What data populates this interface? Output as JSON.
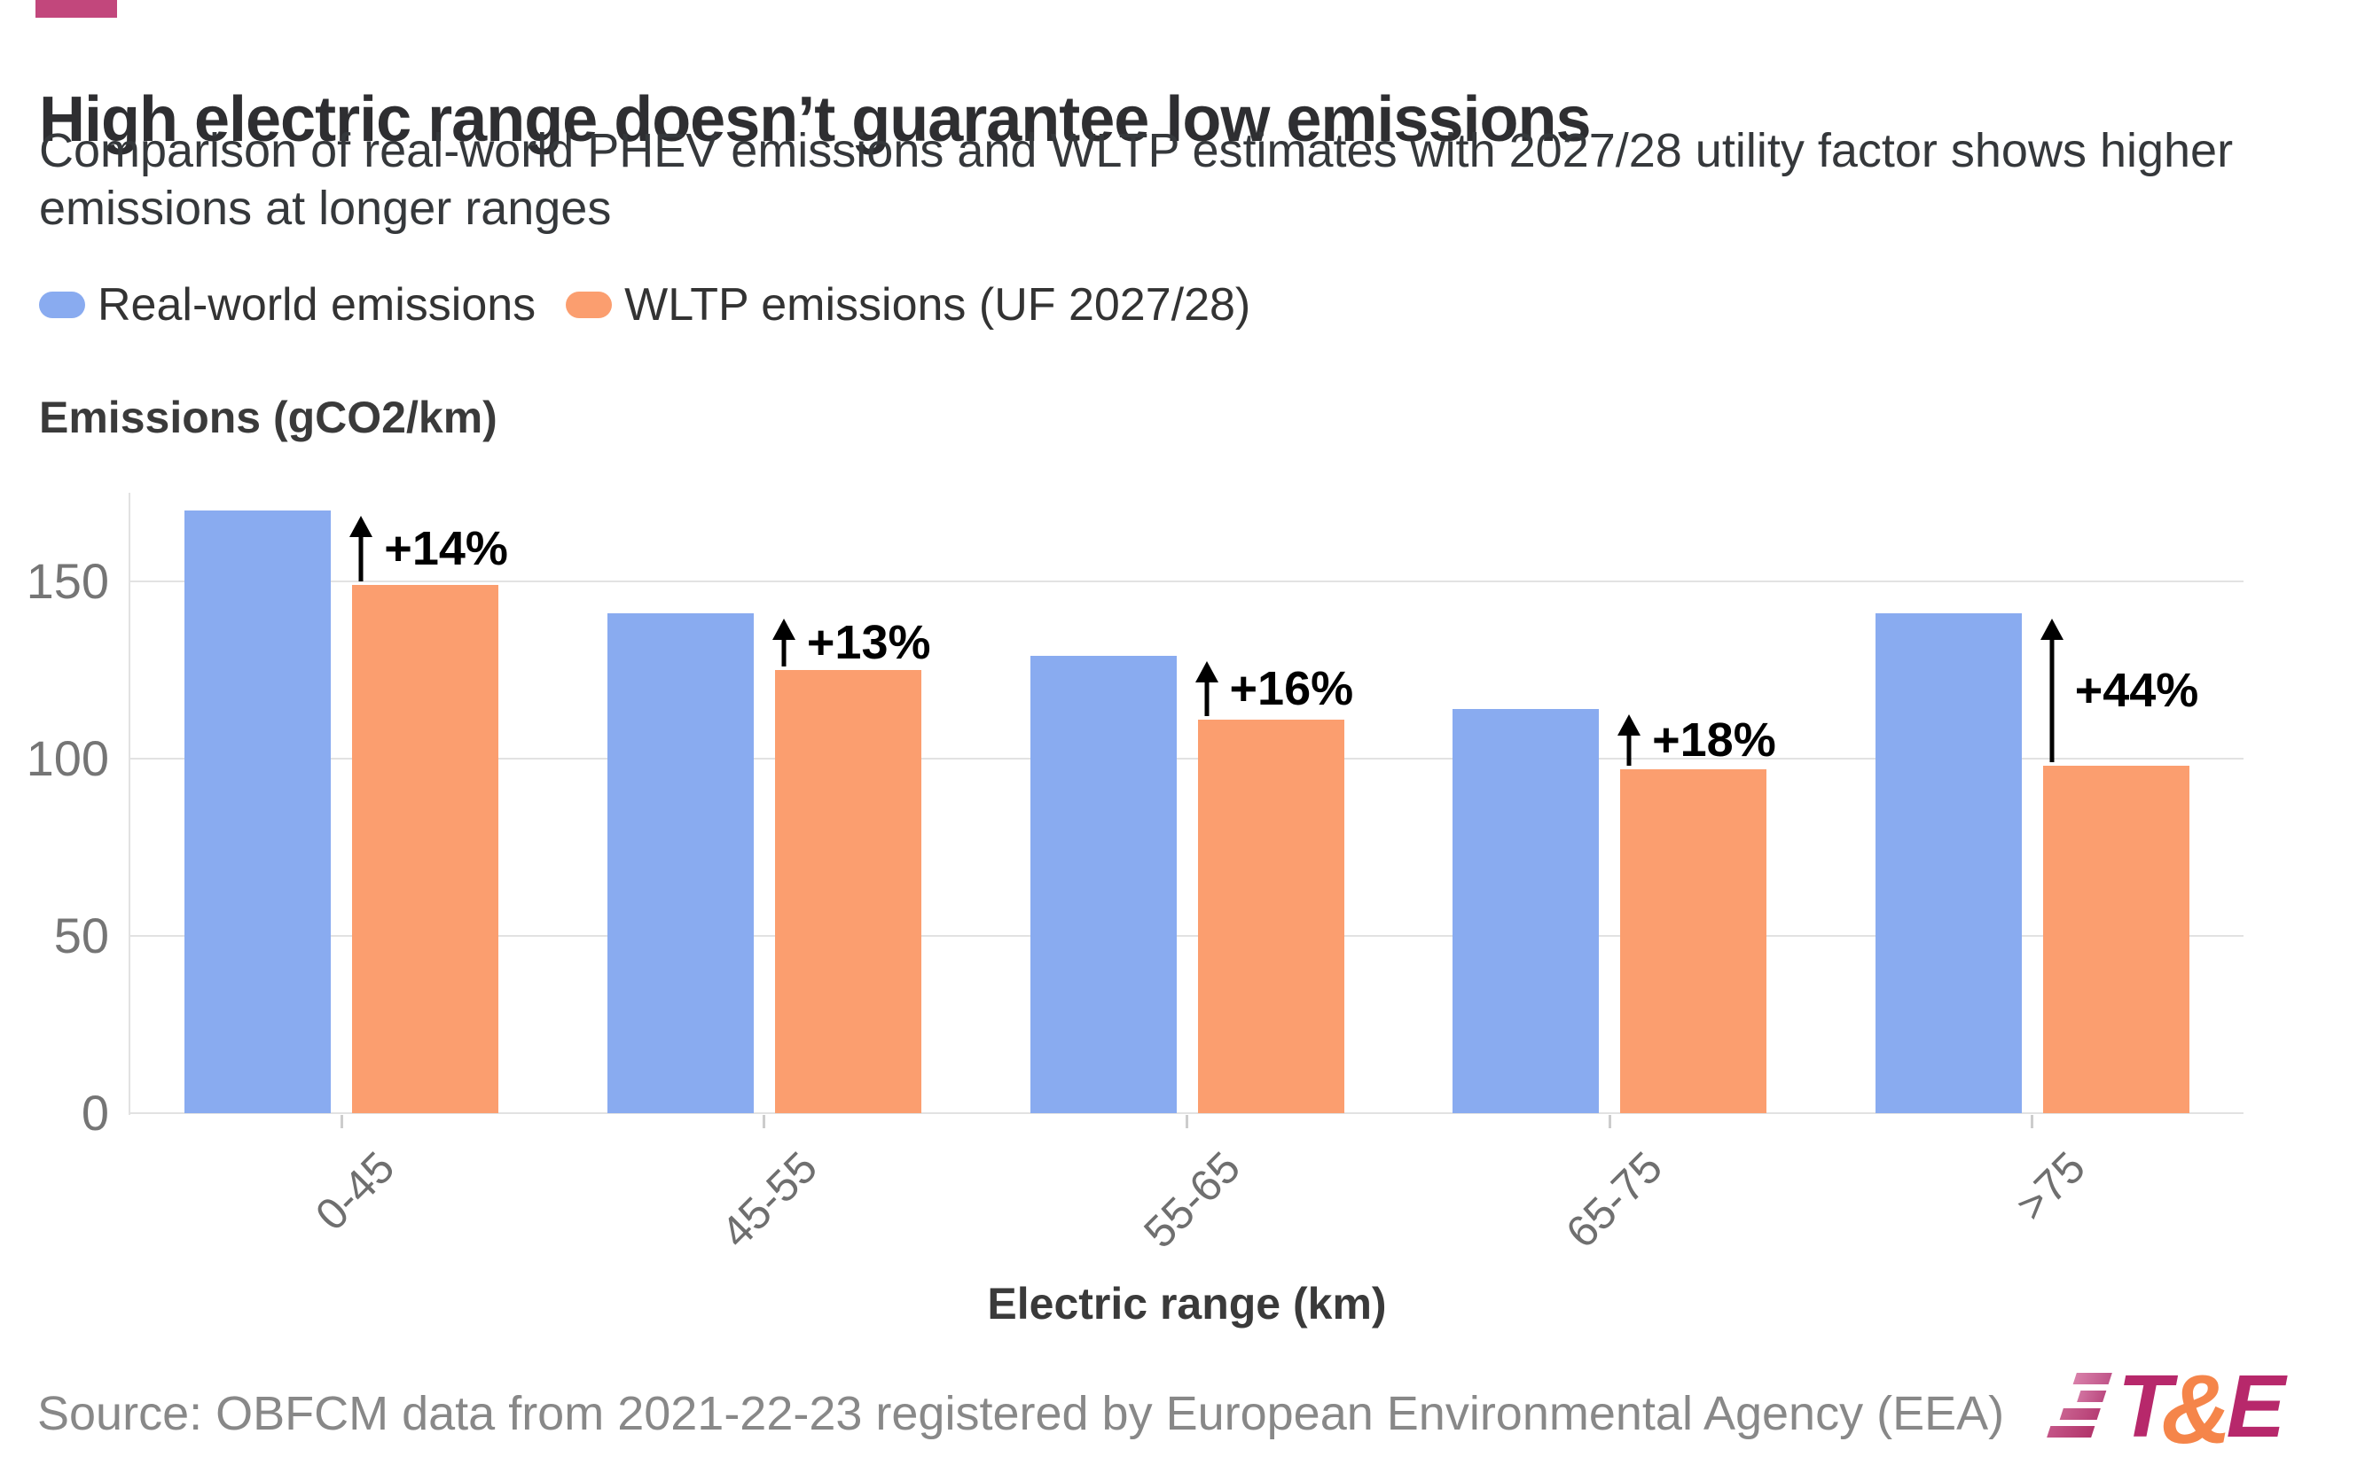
{
  "page": {
    "background": "#ffffff",
    "accent_color": "#c2477c"
  },
  "header": {
    "title": "High electric range doesn’t guarantee low emissions",
    "subtitle": "Comparison of real-world PHEV emissions and WLTP estimates with 2027/28 utility factor shows higher emissions at longer ranges"
  },
  "legend": {
    "items": [
      {
        "label": "Real-world emissions",
        "color": "#89abf0"
      },
      {
        "label": "WLTP emissions (UF 2027/28)",
        "color": "#fb9e6f"
      }
    ]
  },
  "chart_data": {
    "type": "bar",
    "title": "High electric range doesn’t guarantee low emissions",
    "categories": [
      "0-45",
      "45-55",
      "55-65",
      "65-75",
      ">75"
    ],
    "series": [
      {
        "name": "Real-world emissions",
        "color": "#89abf0",
        "values": [
          170,
          141,
          129,
          114,
          141
        ]
      },
      {
        "name": "WLTP emissions (UF 2027/28)",
        "color": "#fb9e6f",
        "values": [
          149,
          125,
          111,
          97,
          98
        ]
      }
    ],
    "annotations": [
      {
        "category": "0-45",
        "label": "+14%"
      },
      {
        "category": "45-55",
        "label": "+13%"
      },
      {
        "category": "55-65",
        "label": "+16%"
      },
      {
        "category": "65-75",
        "label": "+18%"
      },
      {
        "category": ">75",
        "label": "+44%"
      }
    ],
    "xlabel": "Electric range (km)",
    "ylabel": "Emissions (gCO2/km)",
    "yticks": [
      0,
      50,
      100,
      150
    ],
    "ylim": [
      0,
      175
    ],
    "grid": true,
    "legend_position": "top"
  },
  "footer": {
    "source": "Source: OBFCM data from 2021-22-23 registered by European Environmental Agency (EEA)",
    "logo": {
      "t": "T",
      "amp": "&",
      "e": "E"
    }
  }
}
